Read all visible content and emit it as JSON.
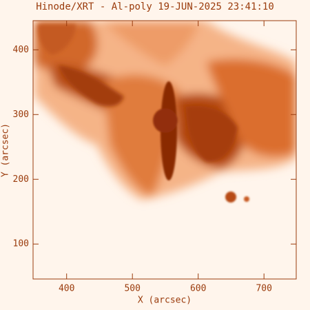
{
  "chart_data": {
    "type": "image",
    "title": "Hinode/XRT - Al-poly 19-JUN-2025 23:41:10",
    "xlabel": "X (arcsec)",
    "ylabel": "Y (arcsec)",
    "xlim": [
      349,
      749
    ],
    "ylim": [
      46,
      445
    ],
    "xticks": [
      400,
      500,
      600,
      700
    ],
    "yticks": [
      100,
      200,
      300,
      400
    ]
  }
}
